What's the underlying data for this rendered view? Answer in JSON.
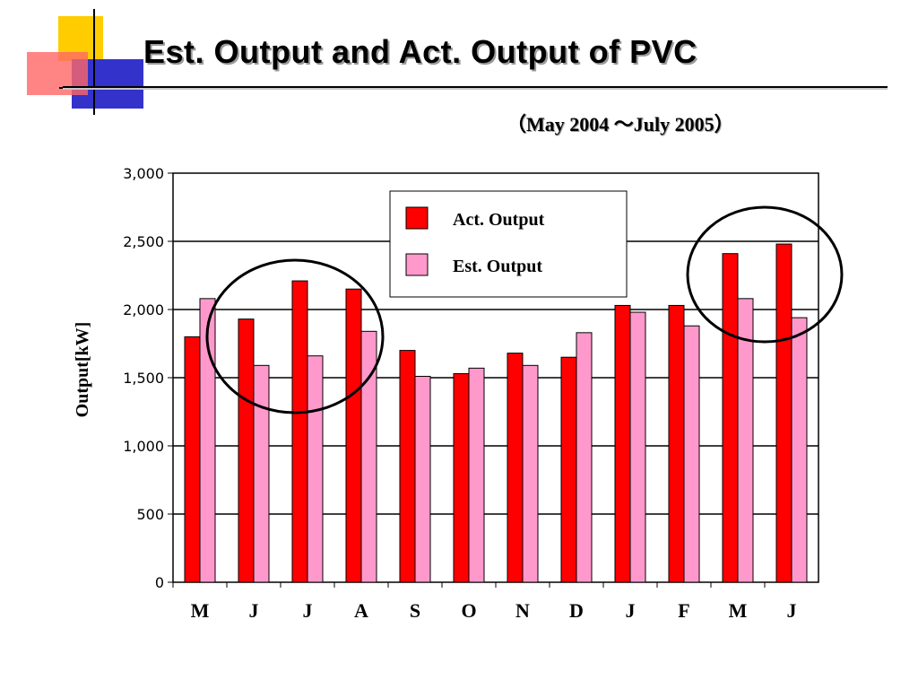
{
  "slide": {
    "title": "Est. Output and Act. Output of PVC",
    "subtitle": "（May 2004 ～July 2005）"
  },
  "colors": {
    "act": "#ff0000",
    "est": "#ff99cc",
    "logo_yellow": "#ffcc00",
    "logo_blue": "#3333cc",
    "logo_red": "#ff6666"
  },
  "chart_data": {
    "type": "bar",
    "ylabel": "Output[kW]",
    "xlabel": "",
    "ylim": [
      0,
      3000
    ],
    "yticks": [
      "0",
      "500",
      "1,000",
      "1,500",
      "2,000",
      "2,500",
      "3,000"
    ],
    "ytick_values": [
      0,
      500,
      1000,
      1500,
      2000,
      2500,
      3000
    ],
    "categories": [
      "M",
      "J",
      "J",
      "A",
      "S",
      "O",
      "N",
      "D",
      "J",
      "F",
      "M",
      "J"
    ],
    "series": [
      {
        "name": "Act. Output",
        "values": [
          1800,
          1930,
          2210,
          2150,
          1700,
          1530,
          1680,
          1650,
          2030,
          2030,
          2410,
          2480
        ]
      },
      {
        "name": "Est. Output",
        "values": [
          2080,
          1590,
          1660,
          1840,
          1510,
          1570,
          1590,
          1830,
          1980,
          1880,
          2080,
          1940
        ]
      }
    ],
    "grid": true,
    "legend_position": "top-center",
    "annotations": [
      "circle around Jun–Aug",
      "circle around May–Jun (2005)"
    ]
  }
}
